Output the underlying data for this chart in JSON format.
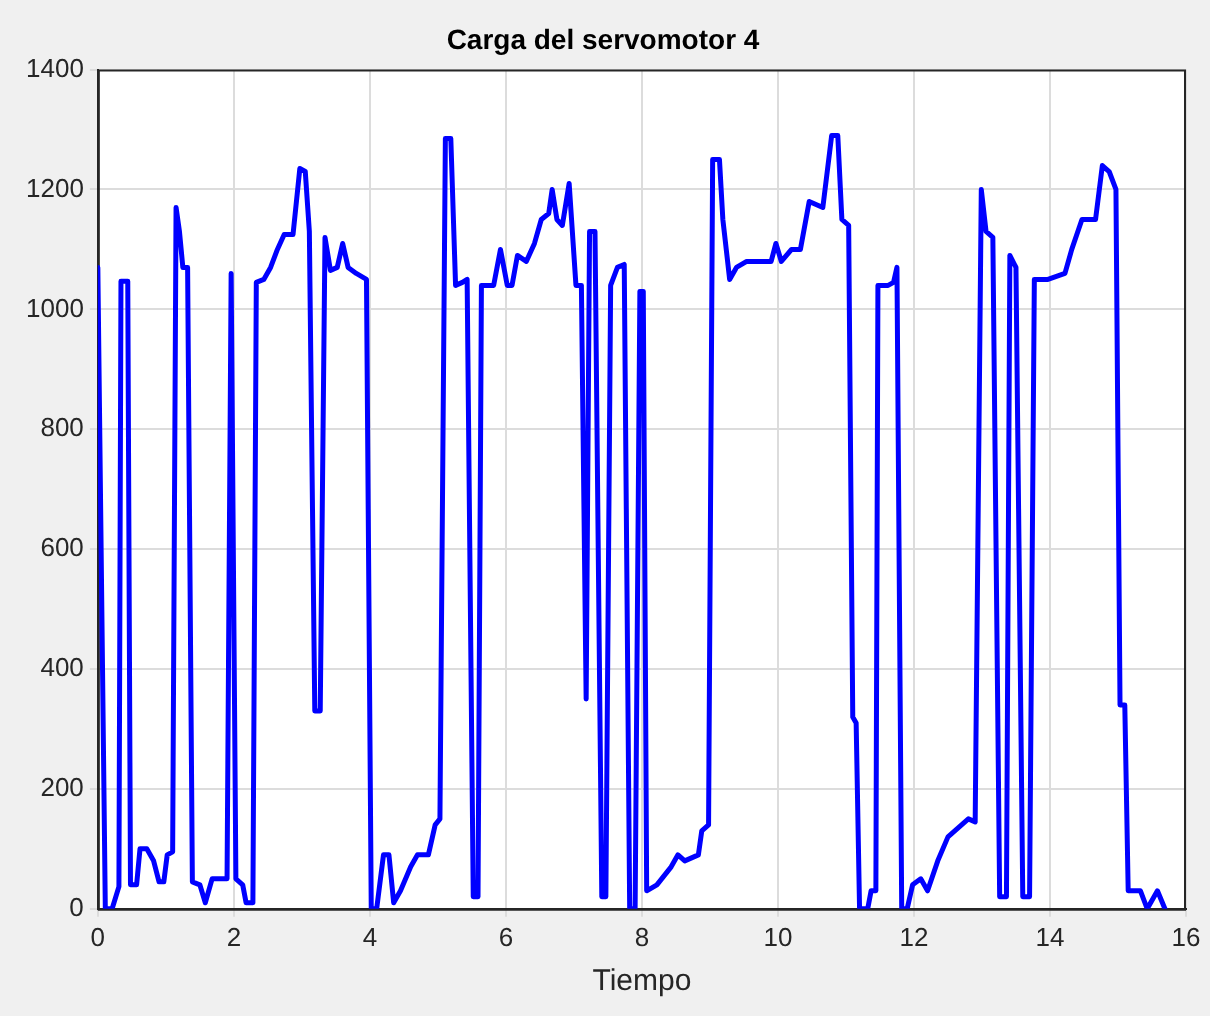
{
  "chart_data": {
    "type": "line",
    "title": "Carga del servomotor 4",
    "xlabel": "Tiempo",
    "xlim": [
      0,
      16
    ],
    "xticks": [
      0,
      2,
      4,
      6,
      8,
      10,
      12,
      14,
      16
    ],
    "ylim": [
      0,
      1400
    ],
    "yticks": [
      0,
      200,
      400,
      600,
      800,
      1000,
      1200,
      1400
    ],
    "grid": true,
    "legend": false,
    "marker": "none",
    "line_style": "solid",
    "series": [
      {
        "color": "#0000ff",
        "x": [
          0,
          0.11,
          0.21,
          0.31,
          0.34,
          0.44,
          0.48,
          0.57,
          0.62,
          0.72,
          0.82,
          0.9,
          0.97,
          1.02,
          1.1,
          1.15,
          1.2,
          1.25,
          1.32,
          1.39,
          1.5,
          1.58,
          1.68,
          1.9,
          1.96,
          2.03,
          2.13,
          2.18,
          2.28,
          2.33,
          2.44,
          2.54,
          2.64,
          2.74,
          2.87,
          2.97,
          3.05,
          3.11,
          3.19,
          3.27,
          3.34,
          3.42,
          3.52,
          3.6,
          3.68,
          3.8,
          3.95,
          4.02,
          4.1,
          4.2,
          4.28,
          4.35,
          4.45,
          4.6,
          4.7,
          4.86,
          4.96,
          5.03,
          5.11,
          5.19,
          5.26,
          5.36,
          5.43,
          5.52,
          5.59,
          5.64,
          5.82,
          5.92,
          6.02,
          6.09,
          6.17,
          6.3,
          6.42,
          6.52,
          6.63,
          6.68,
          6.75,
          6.83,
          6.93,
          7.03,
          7.11,
          7.18,
          7.23,
          7.31,
          7.41,
          7.47,
          7.54,
          7.64,
          7.74,
          7.82,
          7.9,
          7.97,
          8.02,
          8.07,
          8.22,
          8.43,
          8.53,
          8.63,
          8.83,
          8.88,
          8.98,
          9.04,
          9.14,
          9.19,
          9.29,
          9.39,
          9.54,
          9.9,
          9.97,
          10.05,
          10.2,
          10.33,
          10.46,
          10.66,
          10.79,
          10.88,
          10.94,
          11.04,
          11.1,
          11.15,
          11.2,
          11.32,
          11.37,
          11.44,
          11.47,
          11.62,
          11.7,
          11.75,
          11.82,
          11.9,
          11.98,
          12.1,
          12.2,
          12.35,
          12.5,
          12.7,
          12.8,
          12.9,
          12.99,
          13.06,
          13.16,
          13.26,
          13.36,
          13.41,
          13.5,
          13.6,
          13.7,
          13.77,
          13.97,
          14.22,
          14.32,
          14.47,
          14.67,
          14.77,
          14.87,
          14.97,
          15.03,
          15.1,
          15.15,
          15.33,
          15.43,
          15.58,
          15.69
        ],
        "values": [
          1070,
          0,
          0,
          37,
          1047,
          1047,
          40,
          40,
          100,
          100,
          80,
          45,
          45,
          90,
          95,
          1170,
          1130,
          1070,
          1070,
          45,
          40,
          10,
          50,
          50,
          1060,
          50,
          40,
          10,
          10,
          1045,
          1050,
          1070,
          1100,
          1125,
          1125,
          1235,
          1230,
          1130,
          330,
          330,
          1120,
          1065,
          1070,
          1110,
          1070,
          1060,
          1050,
          0,
          0,
          90,
          90,
          10,
          30,
          70,
          90,
          90,
          140,
          150,
          1285,
          1285,
          1040,
          1045,
          1050,
          20,
          20,
          1040,
          1040,
          1100,
          1040,
          1040,
          1090,
          1080,
          1110,
          1150,
          1160,
          1200,
          1150,
          1140,
          1210,
          1040,
          1040,
          350,
          1130,
          1130,
          20,
          20,
          1040,
          1070,
          1075,
          0,
          0,
          1030,
          1030,
          30,
          40,
          70,
          90,
          80,
          90,
          130,
          140,
          1250,
          1250,
          1150,
          1050,
          1070,
          1080,
          1080,
          1110,
          1080,
          1100,
          1100,
          1180,
          1170,
          1290,
          1290,
          1150,
          1140,
          320,
          310,
          0,
          0,
          30,
          30,
          1040,
          1040,
          1045,
          1070,
          0,
          0,
          40,
          50,
          30,
          80,
          120,
          140,
          150,
          145,
          1200,
          1130,
          1120,
          20,
          20,
          1090,
          1070,
          20,
          20,
          1050,
          1050,
          1060,
          1100,
          1150,
          1150,
          1240,
          1230,
          1200,
          340,
          340,
          30,
          30,
          0,
          30,
          0
        ]
      }
    ]
  }
}
